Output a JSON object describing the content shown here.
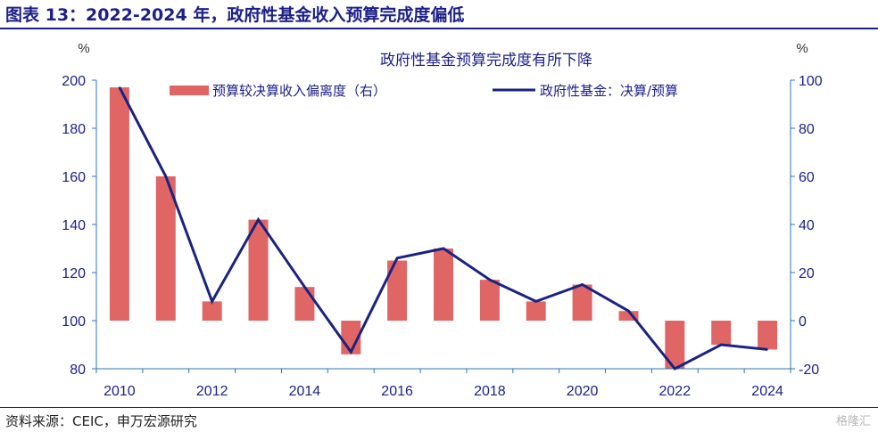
{
  "figure": {
    "title": "图表 13：2022-2024 年，政府性基金收入预算完成度偏低",
    "source": "资料来源：CEIC，申万宏源研究",
    "watermark": "格隆汇"
  },
  "colors": {
    "brand": "#1d2088",
    "bar": "#e06666",
    "line": "#1a237e",
    "axis": "#2e75b6"
  },
  "chart_data": {
    "type": "bar+line",
    "title": "政府性基金预算完成度有所下降",
    "left_unit": "%",
    "right_unit": "%",
    "categories": [
      "2010",
      "2011",
      "2012",
      "2013",
      "2014",
      "2015",
      "2016",
      "2017",
      "2018",
      "2019",
      "2020",
      "2021",
      "2022",
      "2023",
      "2024"
    ],
    "x_tick_labels": [
      "2010",
      "2012",
      "2014",
      "2016",
      "2018",
      "2020",
      "2022",
      "2024"
    ],
    "left_axis": {
      "min": 80,
      "max": 200,
      "step": 20
    },
    "right_axis": {
      "min": -20,
      "max": 100,
      "step": 20
    },
    "series": [
      {
        "name": "预算较决算收入偏离度（右）",
        "type": "bar",
        "axis": "right",
        "values": [
          97,
          60,
          8,
          42,
          14,
          -14,
          25,
          30,
          17,
          8,
          15,
          4,
          -20,
          -10,
          -12
        ]
      },
      {
        "name": "政府性基金：决算/预算",
        "type": "line",
        "axis": "left",
        "values": [
          197,
          160,
          108,
          142,
          114,
          87,
          126,
          130,
          117,
          108,
          115,
          104,
          80,
          90,
          88
        ]
      }
    ]
  }
}
